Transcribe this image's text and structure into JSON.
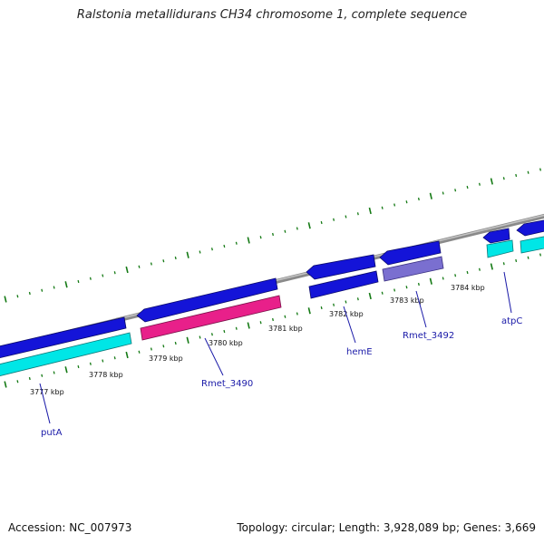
{
  "title": "Ralstonia metallidurans CH34 chromosome 1, complete sequence",
  "footer": {
    "accession": "Accession: NC_007973",
    "summary": "Topology: circular; Length: 3,928,089 bp; Genes: 3,669"
  },
  "colors": {
    "backbone": "#8a8a8a",
    "ticks": "#157a15",
    "cds": "#1414d8",
    "cds_alt": "#00e6e6",
    "rna": "#e8208a",
    "other": "#7a6fd0",
    "gene_label": "#1a1aa8"
  },
  "ruler": [
    "3777 kbp",
    "3778 kbp",
    "3779 kbp",
    "3780 kbp",
    "3781 kbp",
    "3782 kbp",
    "3783 kbp",
    "3784 kbp"
  ],
  "genes": [
    "putA",
    "Rmet_3490",
    "hemE",
    "Rmet_3492",
    "atpC"
  ]
}
